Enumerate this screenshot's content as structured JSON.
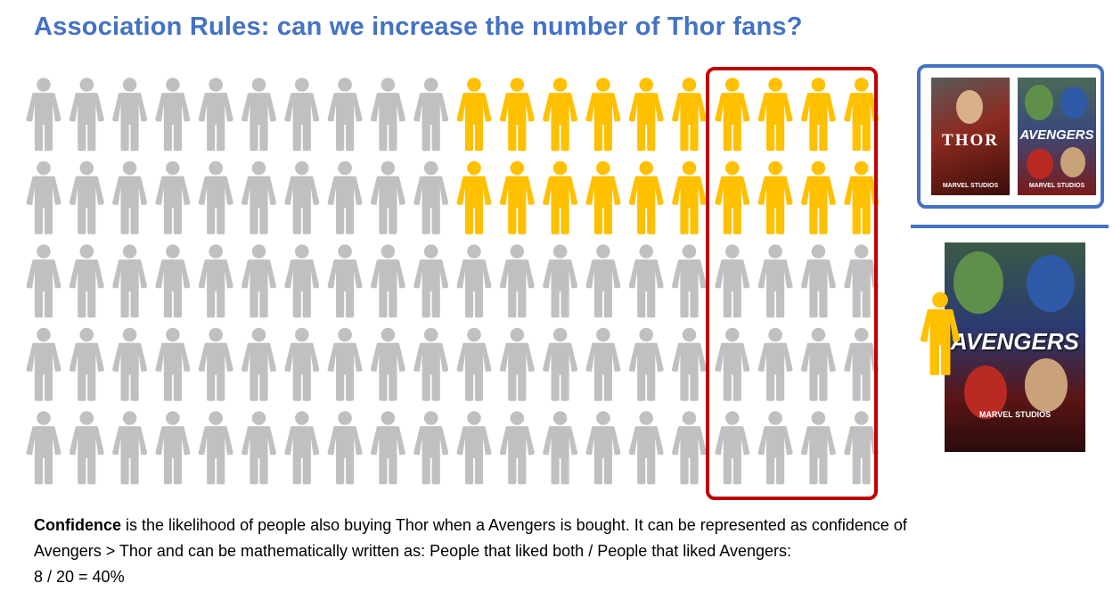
{
  "title": "Association Rules: can we increase the number of Thor fans?",
  "colors": {
    "title": "#4472c4",
    "non_fan": "#c0c0c0",
    "fan": "#ffc000",
    "selection_box": "#c00000",
    "pair_box": "#4472c4"
  },
  "population": {
    "rows": 5,
    "columns": 20,
    "highlighted_rows": 2,
    "highlighted_start_column": 11,
    "total_people": 100,
    "avengers_fans": 20,
    "liked_both": 8
  },
  "posters": {
    "thor": {
      "title": "THOR",
      "studio": "MARVEL STUDIOS"
    },
    "avengers_small": {
      "title": "AVENGERS",
      "studio": "MARVEL STUDIOS"
    },
    "avengers_large": {
      "title": "AVENGERS",
      "studio": "MARVEL STUDIOS"
    }
  },
  "caption": {
    "term": "Confidence",
    "line1_rest": " is the likelihood of people also buying Thor when a Avengers is bought. It can be represented as confidence of",
    "line2": "Avengers > Thor and can be mathematically written as: People that liked both / People that liked Avengers:",
    "line3": "8 / 20 = 40%"
  },
  "icons": {
    "person": "person-icon"
  }
}
